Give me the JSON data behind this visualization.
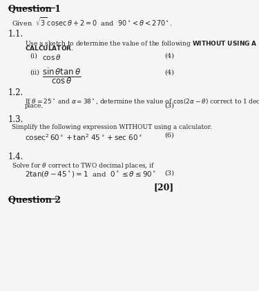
{
  "bg_color": "#f5f5f5",
  "text_color": "#1a1a1a",
  "title": "Question 1",
  "q2_title": "Question 2",
  "sub1": "1.1.",
  "sub2": "1.2.",
  "sub3": "1.3.",
  "sub4": "1.4.",
  "total_marks": "[20]"
}
